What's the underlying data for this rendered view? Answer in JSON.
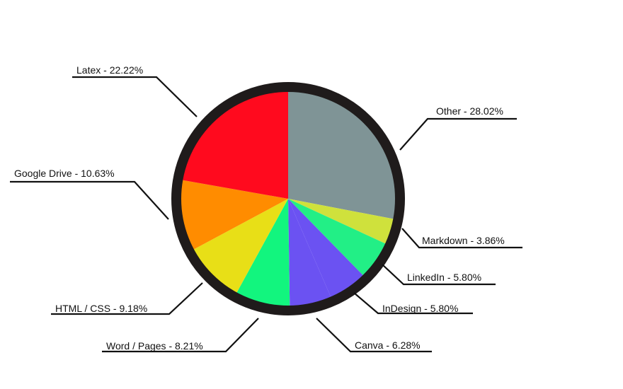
{
  "chart_data": {
    "type": "pie",
    "title": "",
    "start": "12 o'clock",
    "direction": "clockwise",
    "border_color": "#1f1b1b",
    "slices": [
      {
        "name": "Other",
        "value": 28.02,
        "label": "Other - 28.02%",
        "color": "#7f9496"
      },
      {
        "name": "Markdown",
        "value": 3.86,
        "label": "Markdown - 3.86%",
        "color": "#cfe13c"
      },
      {
        "name": "LinkedIn",
        "value": 5.8,
        "label": "LinkedIn - 5.80%",
        "color": "#22ef86"
      },
      {
        "name": "InDesign",
        "value": 5.8,
        "label": "InDesign - 5.80%",
        "color": "#6b52f2"
      },
      {
        "name": "Canva",
        "value": 6.28,
        "label": "Canva - 6.28%",
        "color": "#6b52f2"
      },
      {
        "name": "Word / Pages",
        "value": 8.21,
        "label": "Word / Pages - 8.21%",
        "color": "#12f57e"
      },
      {
        "name": "HTML / CSS",
        "value": 9.18,
        "label": "HTML / CSS - 9.18%",
        "color": "#e8df17"
      },
      {
        "name": "Google Drive",
        "value": 10.63,
        "label": "Google Drive - 10.63%",
        "color": "#ff8c00"
      },
      {
        "name": "Latex",
        "value": 22.22,
        "label": "Latex - 22.22%",
        "color": "#ff0a1e"
      }
    ]
  }
}
